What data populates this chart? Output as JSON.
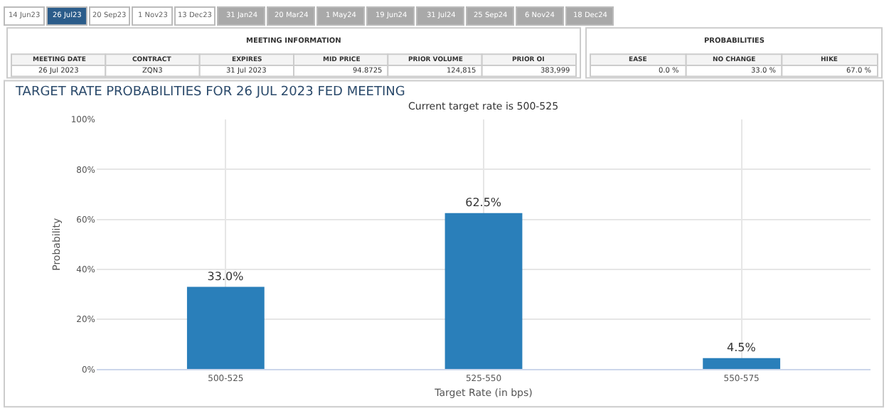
{
  "chart_data": [
    {
      "type": "other",
      "annotations": [
        "14 Jun23",
        "26 Jul23",
        "20 Sep23",
        "1 Nov23",
        "13 Dec23",
        "31 Jan24",
        "20 Mar24",
        "1 May24",
        "19 Jun24",
        "31 Jul24",
        "25 Sep24",
        "6 Nov24",
        "18 Dec24"
      ]
    },
    {
      "type": "other",
      "annotations": [
        "MEETING INFORMATION",
        "MEETING DATE",
        "CONTRACT",
        "EXPIRES",
        "MID PRICE",
        "PRIOR VOLUME",
        "PRIOR OI",
        "26 Jul 2023",
        "ZQN3",
        "31 Jul 2023",
        "94.8725",
        "124,815",
        "383,999"
      ]
    },
    {
      "type": "other",
      "annotations": [
        "PROBABILITIES",
        "EASE",
        "NO CHANGE",
        "HIKE",
        "0.0 %",
        "33.0 %",
        "67.0 %"
      ]
    },
    {
      "type": "bar",
      "title": "TARGET RATE PROBABILITIES FOR 26 JUL 2023 FED MEETING",
      "subtitle": "Current target rate is 500-525",
      "xlabel": "Target Rate (in bps)",
      "ylabel": "Probability",
      "categories": [
        "500-525",
        "525-550",
        "550-575"
      ],
      "values": [
        33.0,
        62.5,
        4.5
      ],
      "value_labels": [
        "33.0%",
        "62.5%",
        "4.5%"
      ],
      "color": "#2a7fba",
      "ylim": [
        0,
        100
      ],
      "yticks": [
        {
          "value": 0,
          "label": "0%"
        },
        {
          "value": 20,
          "label": "20%"
        },
        {
          "value": 40,
          "label": "40%"
        },
        {
          "value": 60,
          "label": "60%"
        },
        {
          "value": 80,
          "label": "80%"
        },
        {
          "value": 100,
          "label": "100%"
        }
      ],
      "grid": true
    }
  ]
}
